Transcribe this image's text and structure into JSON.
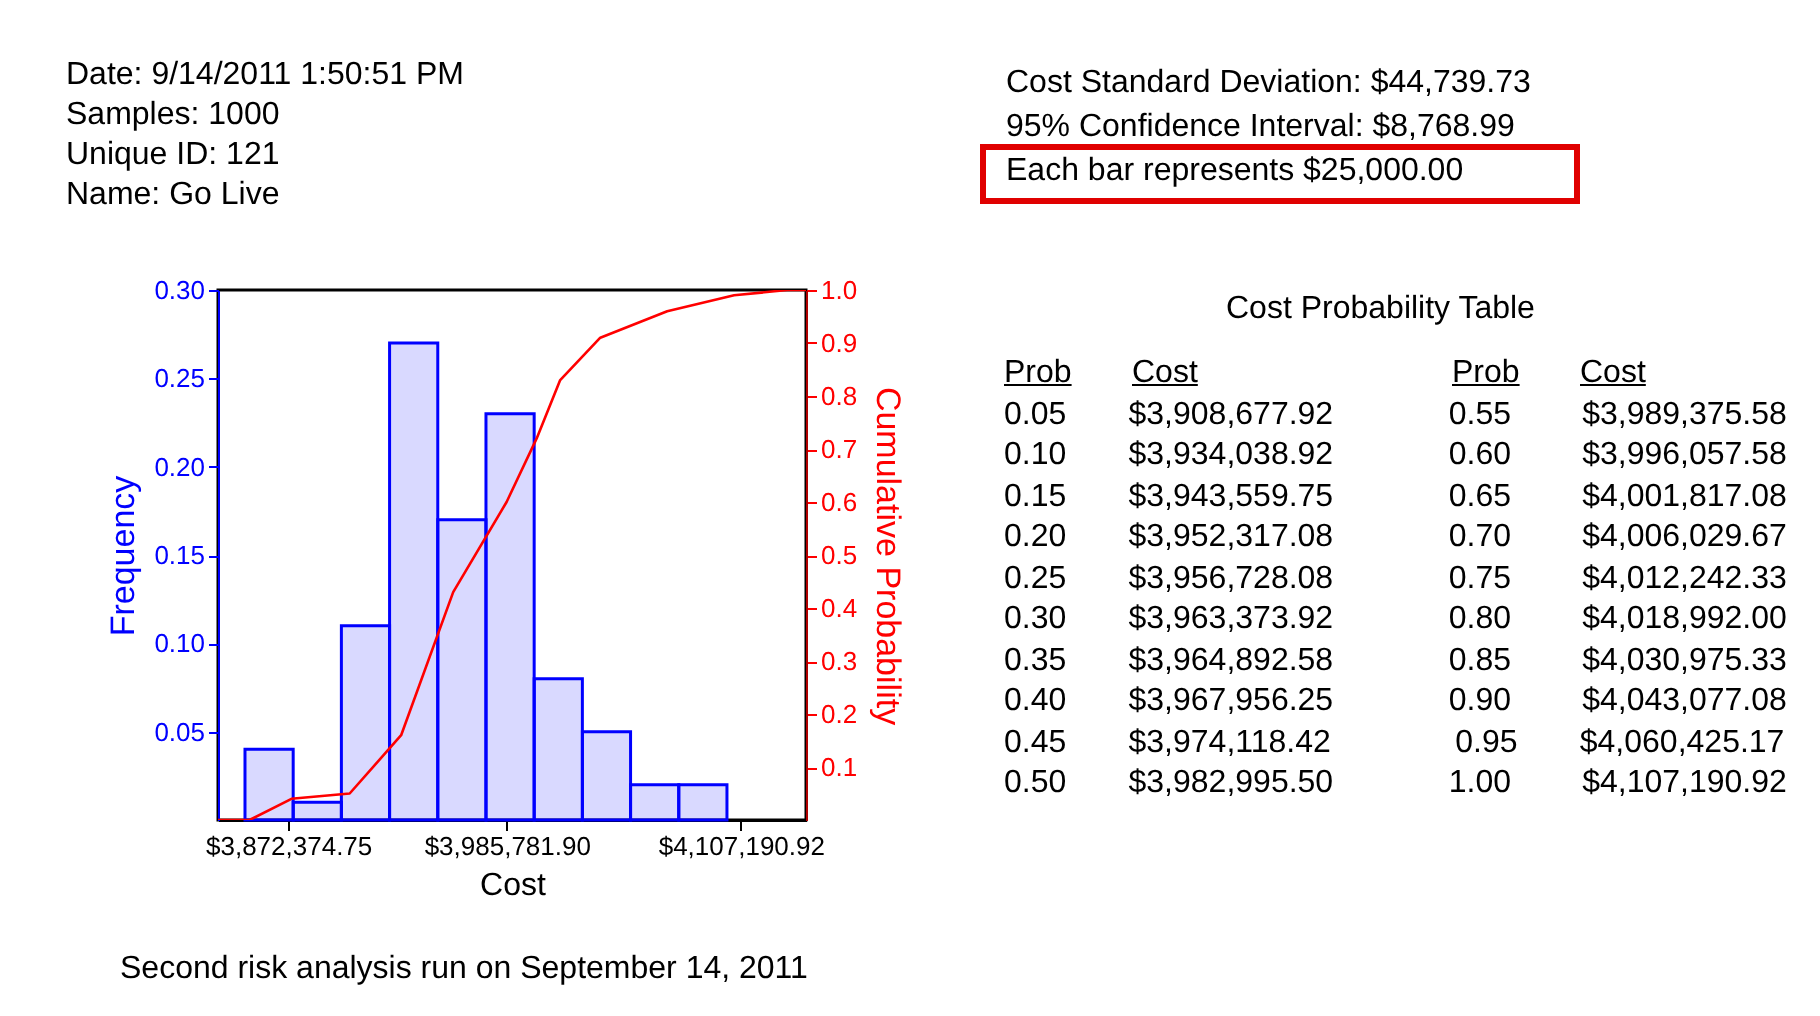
{
  "chart_data": [
    {
      "type": "histogram",
      "xlabel": "Cost",
      "ylabel": "Frequency",
      "y2label": "Cumulative Probability",
      "bins": [
        3850000,
        3875000,
        3900000,
        3925000,
        3950000,
        3975000,
        4000000,
        4025000,
        4050000,
        4075000,
        4100000
      ],
      "series": [
        {
          "type": "histogram",
          "color": "#0000ff",
          "values": [
            0.04,
            0.01,
            0.11,
            0.27,
            0.17,
            0.23,
            0.08,
            0.05,
            0.02,
            0.02
          ]
        },
        {
          "type": "line",
          "axis": "y2",
          "color": "#ff0000",
          "x": [
            3836000,
            3852300,
            3874100,
            3904300,
            3931000,
            3958000,
            3985700,
            4001300,
            4013500,
            4034300,
            4069000,
            4103700,
            4131300,
            4141000
          ],
          "values": [
            0,
            0,
            0.04,
            0.05,
            0.16,
            0.43,
            0.6,
            0.72,
            0.83,
            0.91,
            0.96,
            0.99,
            1,
            1
          ]
        }
      ],
      "xlim": [
        3836000,
        4141000
      ],
      "xticks": [
        {
          "value": 3872374.75,
          "label": "$3,872,374.75"
        },
        {
          "value": 3985781.9,
          "label": "$3,985,781.90"
        },
        {
          "value": 4107190.92,
          "label": "$4,107,190.92"
        }
      ],
      "ylim": [
        0,
        0.3
      ],
      "yticks": [
        {
          "value": 0.05,
          "label": "0.05"
        },
        {
          "value": 0.1,
          "label": "0.10"
        },
        {
          "value": 0.15,
          "label": "0.15"
        },
        {
          "value": 0.2,
          "label": "0.20"
        },
        {
          "value": 0.25,
          "label": "0.25"
        },
        {
          "value": 0.3,
          "label": "0.30"
        }
      ],
      "y2lim": [
        0,
        1
      ],
      "y2ticks": [
        0.1,
        0.2,
        0.3,
        0.4,
        0.5,
        0.6,
        0.7,
        0.8,
        0.9,
        {
          "value": 1,
          "label": "1.0"
        }
      ],
      "annotations": [
        "Date: 9/14/2011 1:50:51 PM",
        "Samples: 1000",
        "Unique ID: 121",
        "Name: Go Live",
        "Cost Standard Deviation: $44,739.73",
        "95% Confidence Interval: $8,768.99",
        "Each bar represents $25,000.00",
        "Second risk analysis run on September 14, 2011"
      ]
    },
    {
      "type": "other",
      "title": "Cost Probability Table",
      "annotations": [
        "Prob",
        "Cost",
        "Prob",
        "Cost",
        "0.05",
        "$3,908,677.92",
        "0.55",
        "$3,989,375.58",
        "0.10",
        "$3,934,038.92",
        "0.60",
        "$3,996,057.58",
        "0.15",
        "$3,943,559.75",
        "0.65",
        "$4,001,817.08",
        "0.20",
        "$3,952,317.08",
        "0.70",
        "$4,006,029.67",
        "0.25",
        "$3,956,728.08",
        "0.75",
        "$4,012,242.33",
        "0.30",
        "$3,963,373.92",
        "0.80",
        "$4,018,992.00",
        "0.35",
        "$3,964,892.58",
        "0.85",
        "$4,030,975.33",
        "0.40",
        "$3,967,956.25",
        "0.90",
        "$4,043,077.08",
        "0.45",
        "$3,974,118.42",
        "0.95",
        "$4,060,425.17",
        "0.50",
        "$3,982,995.50",
        "1.00",
        "$4,107,190.92"
      ]
    }
  ]
}
